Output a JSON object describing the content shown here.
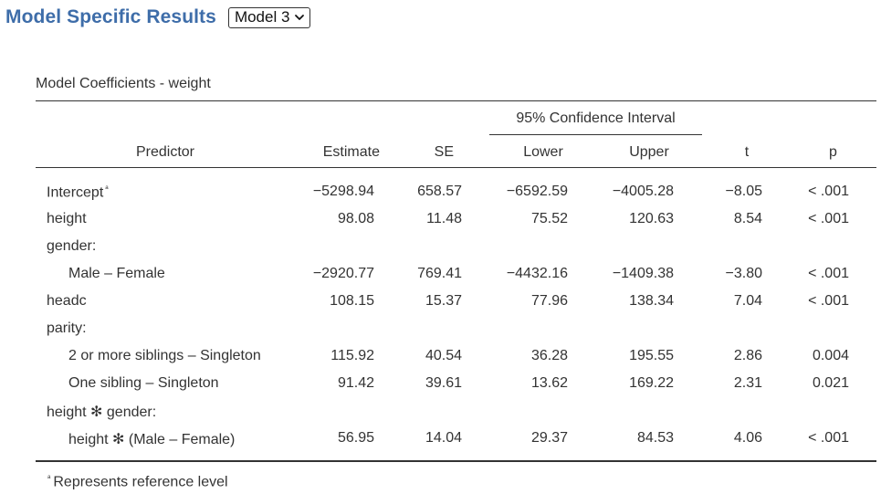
{
  "header": {
    "title": "Model Specific Results",
    "model_select_value": "Model 3"
  },
  "table": {
    "title": "Model Coefficients - weight",
    "ci_header": "95% Confidence Interval",
    "columns": [
      "Predictor",
      "Estimate",
      "SE",
      "Lower",
      "Upper",
      "t",
      "p"
    ],
    "rows": [
      {
        "predictor": "Intercept",
        "note": "ᵃ",
        "estimate": "−5298.94",
        "se": "658.57",
        "lower": "−6592.59",
        "upper": "−4005.28",
        "t": "−8.05",
        "p": "< .001"
      },
      {
        "predictor": "height",
        "estimate": "98.08",
        "se": "11.48",
        "lower": "75.52",
        "upper": "120.63",
        "t": "8.54",
        "p": "< .001"
      },
      {
        "predictor": "gender:"
      },
      {
        "predictor": "Male – Female",
        "estimate": "−2920.77",
        "se": "769.41",
        "lower": "−4432.16",
        "upper": "−1409.38",
        "t": "−3.80",
        "p": "< .001"
      },
      {
        "predictor": "headc",
        "estimate": "108.15",
        "se": "15.37",
        "lower": "77.96",
        "upper": "138.34",
        "t": "7.04",
        "p": "< .001"
      },
      {
        "predictor": "parity:"
      },
      {
        "predictor": "2 or more siblings – Singleton",
        "estimate": "115.92",
        "se": "40.54",
        "lower": "36.28",
        "upper": "195.55",
        "t": "2.86",
        "p": "0.004"
      },
      {
        "predictor": "One sibling – Singleton",
        "estimate": "91.42",
        "se": "39.61",
        "lower": "13.62",
        "upper": "169.22",
        "t": "2.31",
        "p": "0.021"
      },
      {
        "predictor": "height ✻ gender:"
      },
      {
        "predictor": "height ✻ (Male – Female)",
        "estimate": "56.95",
        "se": "14.04",
        "lower": "29.37",
        "upper": "84.53",
        "t": "4.06",
        "p": "< .001"
      }
    ],
    "footnote_mark": "ᵃ",
    "footnote_text": "Represents reference level"
  }
}
